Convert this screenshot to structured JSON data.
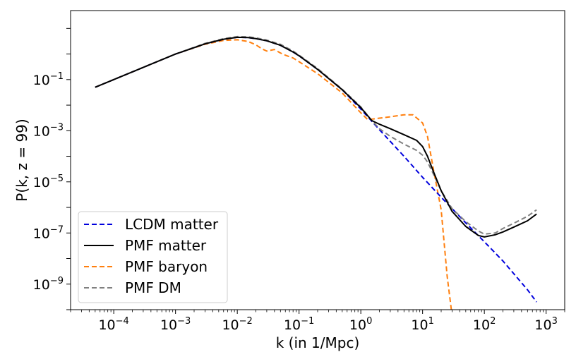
{
  "chart_data": {
    "type": "line",
    "title": "",
    "xlabel": "k (in 1/Mpc)",
    "ylabel": "P(k, z = 99)",
    "xscale": "log",
    "yscale": "log",
    "xlim": [
      2e-05,
      2000
    ],
    "ylim": [
      1e-10,
      50
    ],
    "xticks": [
      0.0001,
      0.001,
      0.01,
      0.1,
      1,
      10,
      100,
      1000
    ],
    "xtick_labels": [
      [
        "10",
        "−4"
      ],
      [
        "10",
        "−3"
      ],
      [
        "10",
        "−2"
      ],
      [
        "10",
        "−1"
      ],
      [
        "10",
        "0"
      ],
      [
        "10",
        "1"
      ],
      [
        "10",
        "2"
      ],
      [
        "10",
        "3"
      ]
    ],
    "yticks": [
      1e-09,
      1e-07,
      1e-05,
      0.001,
      0.1
    ],
    "ytick_labels": [
      [
        "10",
        "−9"
      ],
      [
        "10",
        "−7"
      ],
      [
        "10",
        "−5"
      ],
      [
        "10",
        "−3"
      ],
      [
        "10",
        "−1"
      ]
    ],
    "grid": false,
    "legend_position": "lower-left",
    "series": [
      {
        "name": "LCDM matter",
        "color": "#0000dd",
        "dash": "dashed",
        "x": [
          5e-05,
          0.0001,
          0.001,
          0.003,
          0.006,
          0.01,
          0.015,
          0.02,
          0.03,
          0.05,
          0.08,
          0.1,
          0.2,
          0.5,
          1,
          2,
          5,
          10,
          20,
          50,
          100,
          200,
          500,
          700
        ],
        "y": [
          0.05,
          0.1,
          1,
          2.5,
          3.8,
          4.5,
          4.4,
          4,
          3.3,
          2.2,
          1.2,
          0.85,
          0.25,
          0.04,
          0.007,
          0.0011,
          0.0001,
          1.5e-05,
          2.5e-06,
          2.5e-07,
          4.5e-08,
          8e-09,
          6e-10,
          2e-10
        ]
      },
      {
        "name": "PMF matter",
        "color": "#000000",
        "dash": "solid",
        "x": [
          5e-05,
          0.0001,
          0.001,
          0.003,
          0.006,
          0.01,
          0.015,
          0.02,
          0.03,
          0.05,
          0.08,
          0.1,
          0.2,
          0.5,
          1,
          1.5,
          2,
          3,
          5,
          8,
          10,
          12,
          15,
          20,
          30,
          50,
          80,
          100,
          150,
          200,
          300,
          500,
          700
        ],
        "y": [
          0.05,
          0.1,
          1,
          2.5,
          3.8,
          4.5,
          4.4,
          4,
          3.3,
          2.2,
          1.2,
          0.85,
          0.25,
          0.04,
          0.008,
          0.0025,
          0.0018,
          0.0012,
          0.0007,
          0.00042,
          0.00024,
          0.0001,
          2.5e-05,
          4.5e-06,
          7e-07,
          1.8e-07,
          8e-08,
          7e-08,
          8.5e-08,
          1.1e-07,
          1.7e-07,
          3e-07,
          5.5e-07
        ]
      },
      {
        "name": "PMF baryon",
        "color": "#ff7f0e",
        "dash": "dashed",
        "x": [
          5e-05,
          0.0001,
          0.001,
          0.003,
          0.006,
          0.01,
          0.015,
          0.02,
          0.025,
          0.03,
          0.04,
          0.05,
          0.06,
          0.08,
          0.1,
          0.2,
          0.5,
          1,
          1.3,
          2,
          3,
          5,
          7,
          10,
          12,
          15,
          20,
          25,
          30
        ],
        "y": [
          0.05,
          0.1,
          1,
          2.4,
          3.4,
          3.6,
          3.1,
          2.3,
          1.6,
          1.3,
          1.5,
          1.1,
          0.9,
          0.7,
          0.5,
          0.17,
          0.03,
          0.005,
          0.0027,
          0.0031,
          0.0035,
          0.0042,
          0.0042,
          0.002,
          0.0006,
          3e-05,
          8e-07,
          2e-09,
          6e-11
        ]
      },
      {
        "name": "PMF DM",
        "color": "#808080",
        "dash": "dashed",
        "x": [
          5e-05,
          0.0001,
          0.001,
          0.003,
          0.006,
          0.01,
          0.015,
          0.02,
          0.03,
          0.05,
          0.08,
          0.1,
          0.2,
          0.5,
          1,
          1.5,
          2,
          3,
          5,
          8,
          10,
          12,
          15,
          20,
          30,
          50,
          80,
          100,
          150,
          200,
          300,
          500,
          700
        ],
        "y": [
          0.05,
          0.1,
          1,
          2.6,
          4,
          4.8,
          4.7,
          4.3,
          3.5,
          2.4,
          1.3,
          0.9,
          0.27,
          0.042,
          0.0085,
          0.0025,
          0.0012,
          0.0006,
          0.0003,
          0.00017,
          0.00011,
          6e-05,
          2e-05,
          4.5e-06,
          9e-07,
          2.8e-07,
          1.2e-07,
          9e-08,
          1e-07,
          1.5e-07,
          2.4e-07,
          4.5e-07,
          8e-07
        ]
      }
    ]
  }
}
